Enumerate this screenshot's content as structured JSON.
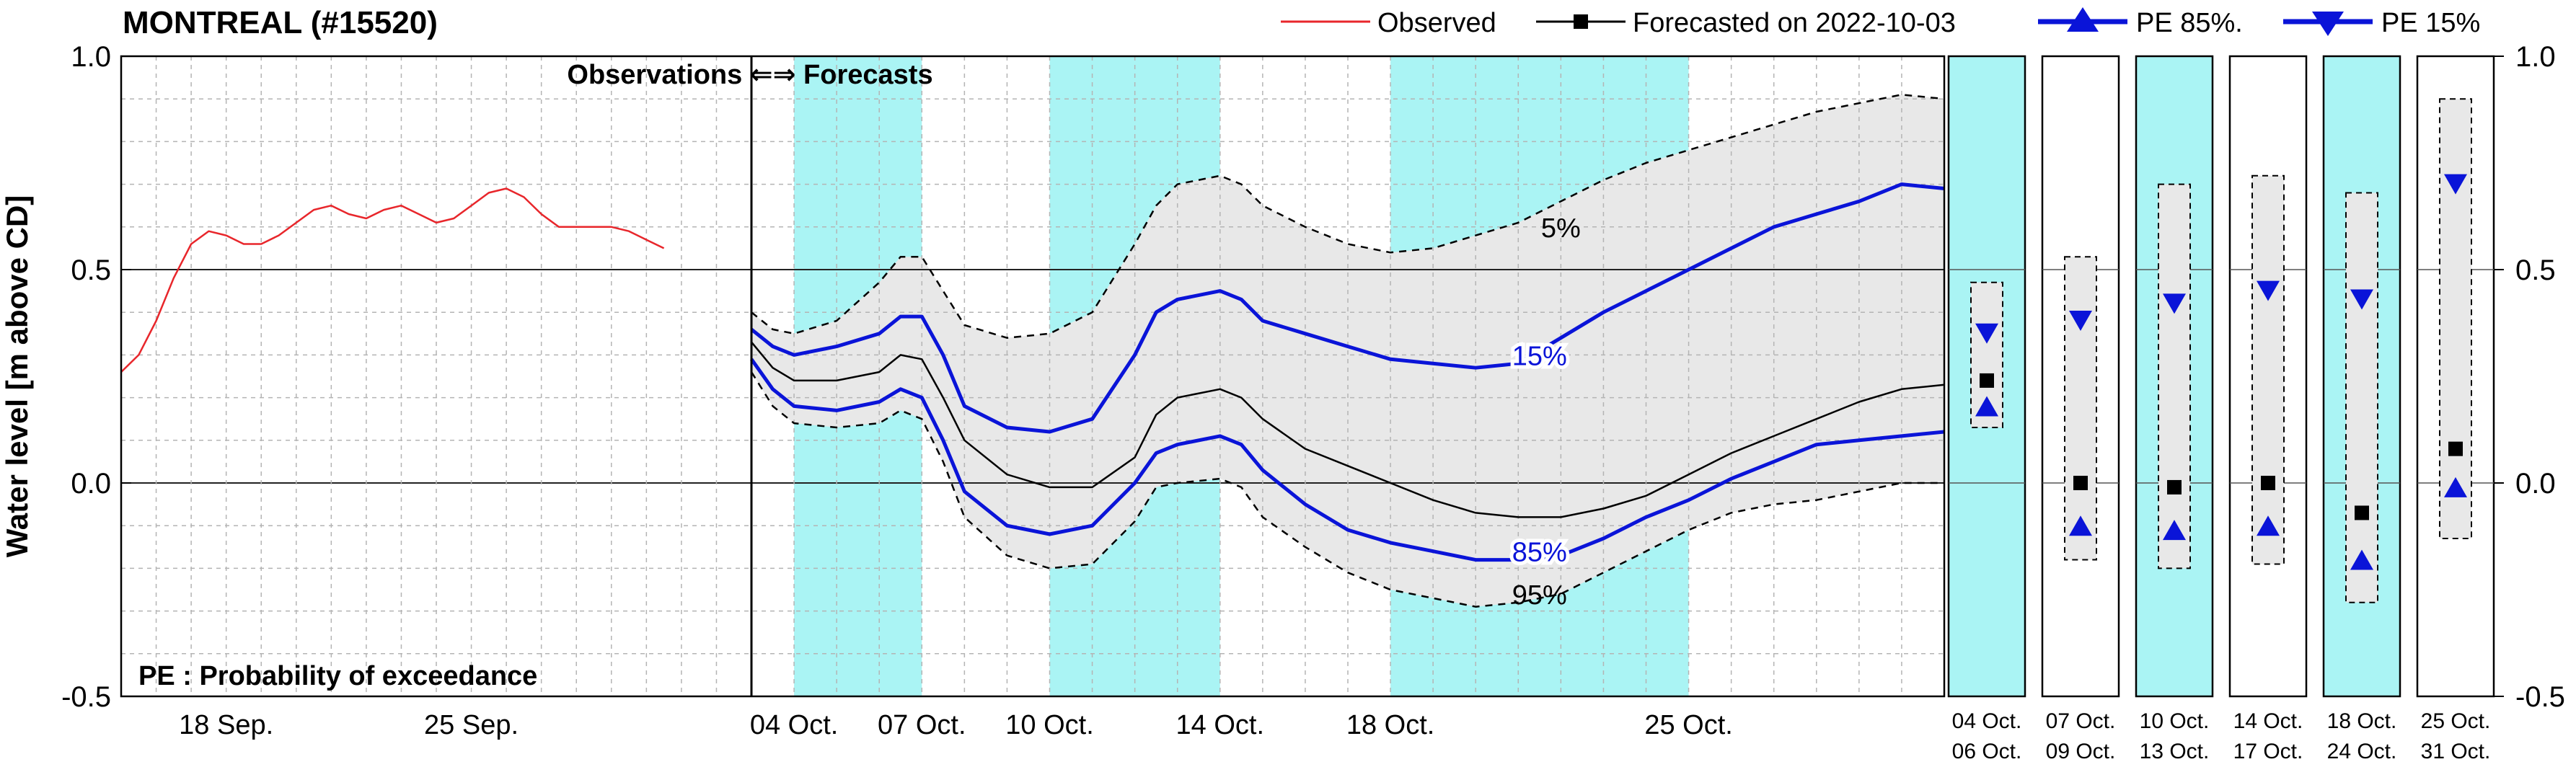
{
  "chart_data": {
    "type": "line",
    "title": "MONTREAL (#15520)",
    "ylabel": "Water level [m above CD]",
    "ylim": [
      -0.5,
      1.0
    ],
    "yticks": [
      -0.5,
      0.0,
      0.5,
      1.0
    ],
    "ytick_labels": [
      "-0.5",
      "0.0",
      "0.5",
      "1.0"
    ],
    "xlim": [
      "2022-09-15",
      "2022-10-31"
    ],
    "obs_forecast_divider": "2022-10-03",
    "xtick_labels": [
      {
        "date": "2022-09-18",
        "label": "18 Sep."
      },
      {
        "date": "2022-09-25",
        "label": "25 Sep."
      },
      {
        "date": "2022-10-04",
        "label": "04 Oct."
      },
      {
        "date": "2022-10-07",
        "label": "07 Oct."
      },
      {
        "date": "2022-10-10",
        "label": "10 Oct."
      },
      {
        "date": "2022-10-14",
        "label": "14 Oct."
      },
      {
        "date": "2022-10-18",
        "label": "18 Oct."
      },
      {
        "date": "2022-10-25",
        "label": "25 Oct."
      }
    ],
    "legend": {
      "placement": "top",
      "entries": [
        {
          "label": "Observed",
          "color": "#e8262b",
          "marker": "none"
        },
        {
          "label": "Forecasted on 2022-10-03",
          "color": "#000000",
          "marker": "square"
        },
        {
          "label": "PE 85%.",
          "color": "#0a14d8",
          "marker": "triangle-up"
        },
        {
          "label": "PE 15%",
          "color": "#0a14d8",
          "marker": "triangle-down"
        }
      ]
    },
    "divider_label": "Observations ⇐⇒ Forecasts",
    "note": "PE : Probability of exceedance",
    "band_periods": [
      [
        "2022-10-04",
        "2022-10-07"
      ],
      [
        "2022-10-10",
        "2022-10-14"
      ],
      [
        "2022-10-18",
        "2022-10-25"
      ]
    ],
    "series": [
      {
        "name": "Observed",
        "color": "#e8262b",
        "points": [
          [
            "2022-09-15",
            0.26
          ],
          [
            "2022-09-15T12:00",
            0.3
          ],
          [
            "2022-09-16",
            0.38
          ],
          [
            "2022-09-16T12:00",
            0.48
          ],
          [
            "2022-09-17",
            0.56
          ],
          [
            "2022-09-17T12:00",
            0.59
          ],
          [
            "2022-09-18",
            0.58
          ],
          [
            "2022-09-18T12:00",
            0.56
          ],
          [
            "2022-09-19",
            0.56
          ],
          [
            "2022-09-19T12:00",
            0.58
          ],
          [
            "2022-09-20",
            0.61
          ],
          [
            "2022-09-20T12:00",
            0.64
          ],
          [
            "2022-09-21",
            0.65
          ],
          [
            "2022-09-21T12:00",
            0.63
          ],
          [
            "2022-09-22",
            0.62
          ],
          [
            "2022-09-22T12:00",
            0.64
          ],
          [
            "2022-09-23",
            0.65
          ],
          [
            "2022-09-23T12:00",
            0.63
          ],
          [
            "2022-09-24",
            0.61
          ],
          [
            "2022-09-24T12:00",
            0.62
          ],
          [
            "2022-09-25",
            0.65
          ],
          [
            "2022-09-25T12:00",
            0.68
          ],
          [
            "2022-09-26",
            0.69
          ],
          [
            "2022-09-26T12:00",
            0.67
          ],
          [
            "2022-09-27",
            0.63
          ],
          [
            "2022-09-27T12:00",
            0.6
          ],
          [
            "2022-09-28",
            0.6
          ],
          [
            "2022-09-29",
            0.6
          ],
          [
            "2022-09-29T12:00",
            0.59
          ],
          [
            "2022-09-30",
            0.57
          ],
          [
            "2022-09-30T12:00",
            0.55
          ]
        ]
      },
      {
        "name": "Forecasted on 2022-10-03",
        "color": "#000000",
        "points": [
          [
            "2022-10-03",
            0.33
          ],
          [
            "2022-10-03T12:00",
            0.27
          ],
          [
            "2022-10-04",
            0.24
          ],
          [
            "2022-10-05",
            0.24
          ],
          [
            "2022-10-06",
            0.26
          ],
          [
            "2022-10-06T12:00",
            0.3
          ],
          [
            "2022-10-07",
            0.29
          ],
          [
            "2022-10-07T12:00",
            0.2
          ],
          [
            "2022-10-08",
            0.1
          ],
          [
            "2022-10-09",
            0.02
          ],
          [
            "2022-10-10",
            -0.01
          ],
          [
            "2022-10-11",
            -0.01
          ],
          [
            "2022-10-12",
            0.06
          ],
          [
            "2022-10-12T12:00",
            0.16
          ],
          [
            "2022-10-13",
            0.2
          ],
          [
            "2022-10-14",
            0.22
          ],
          [
            "2022-10-14T12:00",
            0.2
          ],
          [
            "2022-10-15",
            0.15
          ],
          [
            "2022-10-16",
            0.08
          ],
          [
            "2022-10-17",
            0.04
          ],
          [
            "2022-10-18",
            0.0
          ],
          [
            "2022-10-19",
            -0.04
          ],
          [
            "2022-10-20",
            -0.07
          ],
          [
            "2022-10-21",
            -0.08
          ],
          [
            "2022-10-22",
            -0.08
          ],
          [
            "2022-10-23",
            -0.06
          ],
          [
            "2022-10-24",
            -0.03
          ],
          [
            "2022-10-25",
            0.02
          ],
          [
            "2022-10-26",
            0.07
          ],
          [
            "2022-10-27",
            0.11
          ],
          [
            "2022-10-28",
            0.15
          ],
          [
            "2022-10-29",
            0.19
          ],
          [
            "2022-10-30",
            0.22
          ],
          [
            "2022-10-31",
            0.23
          ]
        ]
      },
      {
        "name": "PE 15%",
        "color": "#0a14d8",
        "label": "15%",
        "points": [
          [
            "2022-10-03",
            0.36
          ],
          [
            "2022-10-03T12:00",
            0.32
          ],
          [
            "2022-10-04",
            0.3
          ],
          [
            "2022-10-05",
            0.32
          ],
          [
            "2022-10-06",
            0.35
          ],
          [
            "2022-10-06T12:00",
            0.39
          ],
          [
            "2022-10-07",
            0.39
          ],
          [
            "2022-10-07T12:00",
            0.3
          ],
          [
            "2022-10-08",
            0.18
          ],
          [
            "2022-10-09",
            0.13
          ],
          [
            "2022-10-10",
            0.12
          ],
          [
            "2022-10-11",
            0.15
          ],
          [
            "2022-10-12",
            0.3
          ],
          [
            "2022-10-12T12:00",
            0.4
          ],
          [
            "2022-10-13",
            0.43
          ],
          [
            "2022-10-14",
            0.45
          ],
          [
            "2022-10-14T12:00",
            0.43
          ],
          [
            "2022-10-15",
            0.38
          ],
          [
            "2022-10-16",
            0.35
          ],
          [
            "2022-10-17",
            0.32
          ],
          [
            "2022-10-18",
            0.29
          ],
          [
            "2022-10-19",
            0.28
          ],
          [
            "2022-10-20",
            0.27
          ],
          [
            "2022-10-21",
            0.28
          ],
          [
            "2022-10-22",
            0.34
          ],
          [
            "2022-10-23",
            0.4
          ],
          [
            "2022-10-24",
            0.45
          ],
          [
            "2022-10-25",
            0.5
          ],
          [
            "2022-10-26",
            0.55
          ],
          [
            "2022-10-27",
            0.6
          ],
          [
            "2022-10-28",
            0.63
          ],
          [
            "2022-10-29",
            0.66
          ],
          [
            "2022-10-30",
            0.7
          ],
          [
            "2022-10-31",
            0.69
          ]
        ]
      },
      {
        "name": "PE 85%.",
        "color": "#0a14d8",
        "label": "85%",
        "points": [
          [
            "2022-10-03",
            0.29
          ],
          [
            "2022-10-03T12:00",
            0.22
          ],
          [
            "2022-10-04",
            0.18
          ],
          [
            "2022-10-05",
            0.17
          ],
          [
            "2022-10-06",
            0.19
          ],
          [
            "2022-10-06T12:00",
            0.22
          ],
          [
            "2022-10-07",
            0.2
          ],
          [
            "2022-10-07T12:00",
            0.1
          ],
          [
            "2022-10-08",
            -0.02
          ],
          [
            "2022-10-09",
            -0.1
          ],
          [
            "2022-10-10",
            -0.12
          ],
          [
            "2022-10-11",
            -0.1
          ],
          [
            "2022-10-12",
            0.0
          ],
          [
            "2022-10-12T12:00",
            0.07
          ],
          [
            "2022-10-13",
            0.09
          ],
          [
            "2022-10-14",
            0.11
          ],
          [
            "2022-10-14T12:00",
            0.09
          ],
          [
            "2022-10-15",
            0.03
          ],
          [
            "2022-10-16",
            -0.05
          ],
          [
            "2022-10-17",
            -0.11
          ],
          [
            "2022-10-18",
            -0.14
          ],
          [
            "2022-10-19",
            -0.16
          ],
          [
            "2022-10-20",
            -0.18
          ],
          [
            "2022-10-21",
            -0.18
          ],
          [
            "2022-10-22",
            -0.17
          ],
          [
            "2022-10-23",
            -0.13
          ],
          [
            "2022-10-24",
            -0.08
          ],
          [
            "2022-10-25",
            -0.04
          ],
          [
            "2022-10-26",
            0.01
          ],
          [
            "2022-10-27",
            0.05
          ],
          [
            "2022-10-28",
            0.09
          ],
          [
            "2022-10-29",
            0.1
          ],
          [
            "2022-10-30",
            0.11
          ],
          [
            "2022-10-31",
            0.12
          ]
        ]
      },
      {
        "name": "PE 5%",
        "color": "#000000",
        "style": "dashed",
        "label": "5%",
        "points": [
          [
            "2022-10-03",
            0.4
          ],
          [
            "2022-10-03T12:00",
            0.36
          ],
          [
            "2022-10-04",
            0.35
          ],
          [
            "2022-10-05",
            0.38
          ],
          [
            "2022-10-06",
            0.47
          ],
          [
            "2022-10-06T12:00",
            0.53
          ],
          [
            "2022-10-07",
            0.53
          ],
          [
            "2022-10-07T12:00",
            0.45
          ],
          [
            "2022-10-08",
            0.37
          ],
          [
            "2022-10-09",
            0.34
          ],
          [
            "2022-10-10",
            0.35
          ],
          [
            "2022-10-11",
            0.4
          ],
          [
            "2022-10-12",
            0.56
          ],
          [
            "2022-10-12T12:00",
            0.65
          ],
          [
            "2022-10-13",
            0.7
          ],
          [
            "2022-10-14",
            0.72
          ],
          [
            "2022-10-14T12:00",
            0.7
          ],
          [
            "2022-10-15",
            0.65
          ],
          [
            "2022-10-16",
            0.6
          ],
          [
            "2022-10-17",
            0.56
          ],
          [
            "2022-10-18",
            0.54
          ],
          [
            "2022-10-19",
            0.55
          ],
          [
            "2022-10-20",
            0.58
          ],
          [
            "2022-10-21",
            0.61
          ],
          [
            "2022-10-22",
            0.66
          ],
          [
            "2022-10-23",
            0.71
          ],
          [
            "2022-10-24",
            0.75
          ],
          [
            "2022-10-25",
            0.78
          ],
          [
            "2022-10-26",
            0.81
          ],
          [
            "2022-10-27",
            0.84
          ],
          [
            "2022-10-28",
            0.87
          ],
          [
            "2022-10-29",
            0.89
          ],
          [
            "2022-10-30",
            0.91
          ],
          [
            "2022-10-31",
            0.9
          ]
        ]
      },
      {
        "name": "PE 95%",
        "color": "#000000",
        "style": "dashed",
        "label": "95%",
        "points": [
          [
            "2022-10-03",
            0.26
          ],
          [
            "2022-10-03T12:00",
            0.18
          ],
          [
            "2022-10-04",
            0.14
          ],
          [
            "2022-10-05",
            0.13
          ],
          [
            "2022-10-06",
            0.14
          ],
          [
            "2022-10-06T12:00",
            0.17
          ],
          [
            "2022-10-07",
            0.15
          ],
          [
            "2022-10-07T12:00",
            0.05
          ],
          [
            "2022-10-08",
            -0.08
          ],
          [
            "2022-10-09",
            -0.17
          ],
          [
            "2022-10-10",
            -0.2
          ],
          [
            "2022-10-11",
            -0.19
          ],
          [
            "2022-10-12",
            -0.09
          ],
          [
            "2022-10-12T12:00",
            -0.01
          ],
          [
            "2022-10-13",
            0.0
          ],
          [
            "2022-10-14",
            0.01
          ],
          [
            "2022-10-14T12:00",
            -0.01
          ],
          [
            "2022-10-15",
            -0.08
          ],
          [
            "2022-10-16",
            -0.15
          ],
          [
            "2022-10-17",
            -0.21
          ],
          [
            "2022-10-18",
            -0.25
          ],
          [
            "2022-10-19",
            -0.27
          ],
          [
            "2022-10-20",
            -0.29
          ],
          [
            "2022-10-21",
            -0.28
          ],
          [
            "2022-10-22",
            -0.26
          ],
          [
            "2022-10-23",
            -0.21
          ],
          [
            "2022-10-24",
            -0.16
          ],
          [
            "2022-10-25",
            -0.11
          ],
          [
            "2022-10-26",
            -0.07
          ],
          [
            "2022-10-27",
            -0.05
          ],
          [
            "2022-10-28",
            -0.04
          ],
          [
            "2022-10-29",
            -0.02
          ],
          [
            "2022-10-30",
            0.0
          ],
          [
            "2022-10-31",
            0.0
          ]
        ]
      }
    ],
    "period_panels": [
      {
        "label1": "04 Oct.",
        "label2": "06 Oct.",
        "shaded": true,
        "pe5": 0.47,
        "pe15": 0.35,
        "forecast": 0.24,
        "pe85": 0.18,
        "pe95": 0.13
      },
      {
        "label1": "07 Oct.",
        "label2": "09 Oct.",
        "shaded": false,
        "pe5": 0.53,
        "pe15": 0.38,
        "forecast": 0.0,
        "pe85": -0.1,
        "pe95": -0.18
      },
      {
        "label1": "10 Oct.",
        "label2": "13 Oct.",
        "shaded": true,
        "pe5": 0.7,
        "pe15": 0.42,
        "forecast": -0.01,
        "pe85": -0.11,
        "pe95": -0.2
      },
      {
        "label1": "14 Oct.",
        "label2": "17 Oct.",
        "shaded": false,
        "pe5": 0.72,
        "pe15": 0.45,
        "forecast": 0.0,
        "pe85": -0.1,
        "pe95": -0.19
      },
      {
        "label1": "18 Oct.",
        "label2": "24 Oct.",
        "shaded": true,
        "pe5": 0.68,
        "pe15": 0.43,
        "forecast": -0.07,
        "pe85": -0.18,
        "pe95": -0.28
      },
      {
        "label1": "25 Oct.",
        "label2": "31 Oct.",
        "shaded": false,
        "pe5": 0.9,
        "pe15": 0.7,
        "forecast": 0.08,
        "pe85": -0.01,
        "pe95": -0.13
      }
    ],
    "colors": {
      "band": "#aaf4f4",
      "envelope": "#e8e8e8",
      "grid": "#b4b4b4",
      "pe_line": "#0a14d8",
      "observed": "#e8262b"
    }
  }
}
